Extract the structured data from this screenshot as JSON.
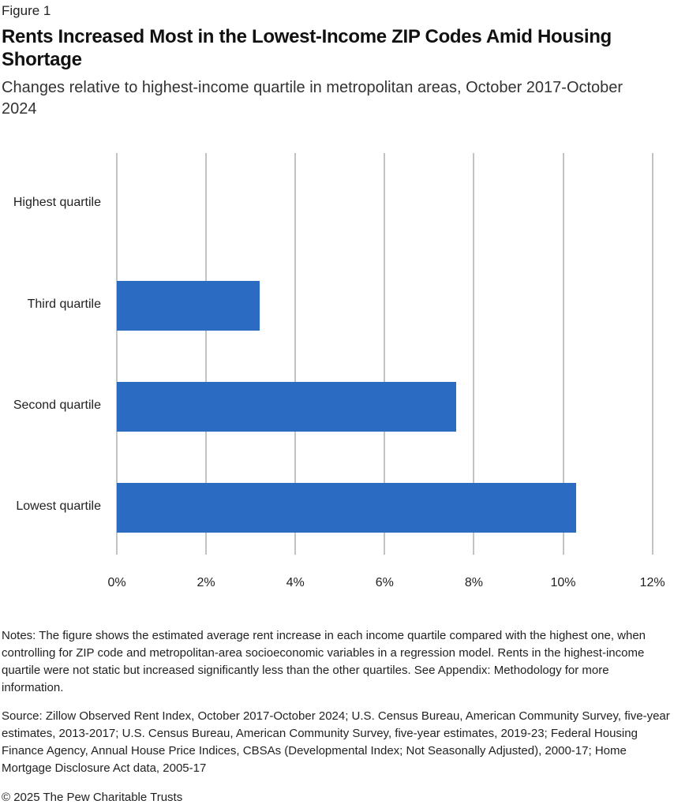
{
  "figure": {
    "label": "Figure 1",
    "title": "Rents Increased Most in the Lowest-Income ZIP Codes Amid Housing Shortage",
    "subtitle": "Changes relative to highest-income quartile in metropolitan areas, October 2017-October 2024",
    "notes": "Notes: The figure shows the estimated average rent increase in each income quartile compared with the highest one, when controlling for ZIP code and metropolitan-area socioeconomic variables in a regression model. Rents in the highest-income quartile were not static but increased significantly less than the other quartiles. See Appendix: Methodology for more information.",
    "source": "Source: Zillow Observed Rent Index, October 2017-October 2024; U.S. Census Bureau, American Community Survey, five-year estimates, 2013-2017; U.S. Census Bureau, American Community Survey, five-year estimates, 2019-23; Federal Housing Finance Agency, Annual House Price Indices, CBSAs (Developmental Index; Not Seasonally Adjusted), 2000-17; Home Mortgage Disclosure Act data, 2005-17",
    "copyright": "© 2025 The Pew Charitable Trusts"
  },
  "colors": {
    "bar": "#2b6cc2",
    "gridline": "#c3c3c3"
  },
  "axis": {
    "ticks": [
      "0%",
      "2%",
      "4%",
      "6%",
      "8%",
      "10%",
      "12%"
    ]
  },
  "chart_data": {
    "type": "bar",
    "orientation": "horizontal",
    "title": "Rents Increased Most in the Lowest-Income ZIP Codes Amid Housing Shortage",
    "subtitle": "Changes relative to highest-income quartile in metropolitan areas, October 2017-October 2024",
    "categories": [
      "Highest quartile",
      "Third quartile",
      "Second quartile",
      "Lowest quartile"
    ],
    "values": [
      0,
      3.2,
      7.6,
      10.3
    ],
    "unit": "%",
    "xlabel": "",
    "ylabel": "",
    "xlim": [
      0,
      12
    ],
    "xticks": [
      0,
      2,
      4,
      6,
      8,
      10,
      12
    ],
    "xtick_labels": [
      "0%",
      "2%",
      "4%",
      "6%",
      "8%",
      "10%",
      "12%"
    ],
    "grid": "vertical",
    "legend": "none"
  }
}
